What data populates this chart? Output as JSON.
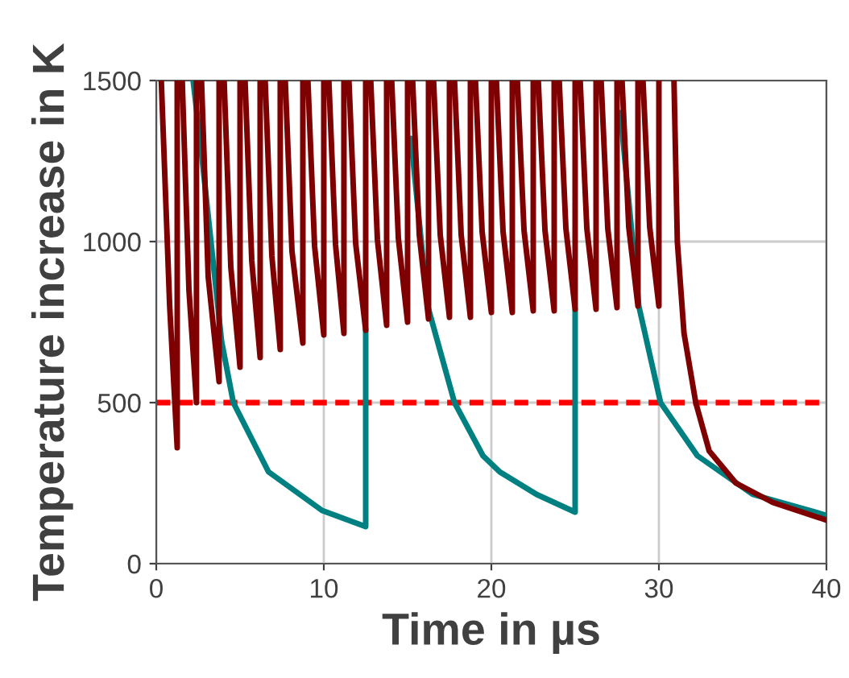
{
  "chart_data": {
    "type": "line",
    "xlabel": "Time in µs",
    "ylabel": "Temperature increase in K",
    "xlim": [
      0,
      40
    ],
    "ylim": [
      0,
      1500
    ],
    "xticks": [
      0,
      10,
      20,
      30,
      40
    ],
    "yticks": [
      0,
      500,
      1000,
      1500
    ],
    "grid": true,
    "ref_lines": [
      {
        "axis": "y",
        "value": 500,
        "label": null,
        "color": "#ff0000",
        "line_style": "dashed"
      }
    ],
    "series": [
      {
        "color": "#7f0000",
        "x": [
          0.3,
          0.8,
          1.25,
          1.25,
          1.4,
          1.55,
          1.95,
          2.4,
          2.4,
          2.55,
          2.7,
          3.1,
          3.75,
          3.75,
          3.9,
          4.05,
          4.45,
          5.0,
          5.0,
          5.15,
          5.3,
          5.7,
          6.2,
          6.2,
          6.35,
          6.5,
          6.9,
          7.4,
          7.4,
          7.55,
          7.7,
          8.1,
          8.75,
          8.75,
          8.9,
          9.05,
          9.45,
          10.0,
          10.0,
          10.15,
          10.3,
          10.7,
          11.2,
          11.2,
          11.35,
          11.5,
          11.9,
          12.5,
          12.5,
          12.65,
          12.8,
          13.2,
          13.75,
          13.75,
          13.9,
          14.05,
          14.45,
          15.0,
          15.0,
          15.15,
          15.3,
          15.7,
          16.25,
          16.25,
          16.4,
          16.55,
          16.95,
          17.5,
          17.5,
          17.65,
          17.8,
          18.2,
          18.75,
          18.75,
          18.9,
          19.05,
          19.45,
          20.0,
          20.0,
          20.15,
          20.3,
          20.7,
          21.25,
          21.25,
          21.4,
          21.55,
          21.95,
          22.5,
          22.5,
          22.65,
          22.8,
          23.2,
          23.75,
          23.75,
          23.9,
          24.05,
          24.45,
          25.0,
          25.0,
          25.15,
          25.3,
          25.7,
          26.25,
          26.25,
          26.4,
          26.55,
          26.95,
          27.5,
          27.5,
          27.65,
          27.8,
          28.2,
          28.75,
          28.75,
          28.9,
          29.05,
          29.45,
          30.0,
          30.0,
          30.4,
          30.9,
          31.1,
          31.5,
          32.2,
          33.0,
          34.6,
          36.8,
          40
        ],
        "values": [
          1500,
          800,
          360,
          1500,
          null,
          1500,
          850,
          500,
          1500,
          null,
          1500,
          890,
          565,
          1500,
          null,
          1500,
          920,
          610,
          1500,
          null,
          1500,
          940,
          640,
          1500,
          null,
          1500,
          955,
          665,
          1500,
          null,
          1500,
          970,
          685,
          1500,
          null,
          1500,
          985,
          710,
          1500,
          null,
          1500,
          990,
          715,
          1500,
          null,
          1500,
          995,
          725,
          1500,
          null,
          1500,
          1005,
          740,
          1500,
          null,
          1500,
          1010,
          750,
          1500,
          null,
          1500,
          1020,
          760,
          1500,
          null,
          1500,
          1020,
          765,
          1500,
          null,
          1500,
          1020,
          765,
          1500,
          null,
          1500,
          1030,
          780,
          1500,
          null,
          1500,
          1030,
          780,
          1500,
          null,
          1500,
          1035,
          785,
          1500,
          null,
          1500,
          1035,
          785,
          1500,
          null,
          1500,
          1040,
          790,
          1500,
          null,
          1500,
          1040,
          790,
          1500,
          null,
          1500,
          1040,
          795,
          1500,
          null,
          1500,
          1045,
          800,
          1500,
          null,
          1500,
          1045,
          800,
          1500,
          null,
          1500,
          1000,
          715,
          500,
          350,
          250,
          190,
          135
        ]
      },
      {
        "color": "#008080",
        "x": [
          2.2,
          2.7,
          3.9,
          4.6,
          6.7,
          9.9,
          12.5,
          12.5,
          13.0,
          15.2,
          16.2,
          17.8,
          19.5,
          20.5,
          22.7,
          25,
          25,
          25.5,
          27.7,
          28.8,
          30.1,
          32.3,
          35.6,
          40
        ],
        "values": [
          1500,
          1275,
          690,
          500,
          285,
          165,
          115,
          730,
          null,
          1320,
          800,
          500,
          335,
          285,
          215,
          160,
          790,
          null,
          1400,
          800,
          500,
          335,
          215,
          150
        ]
      }
    ]
  }
}
